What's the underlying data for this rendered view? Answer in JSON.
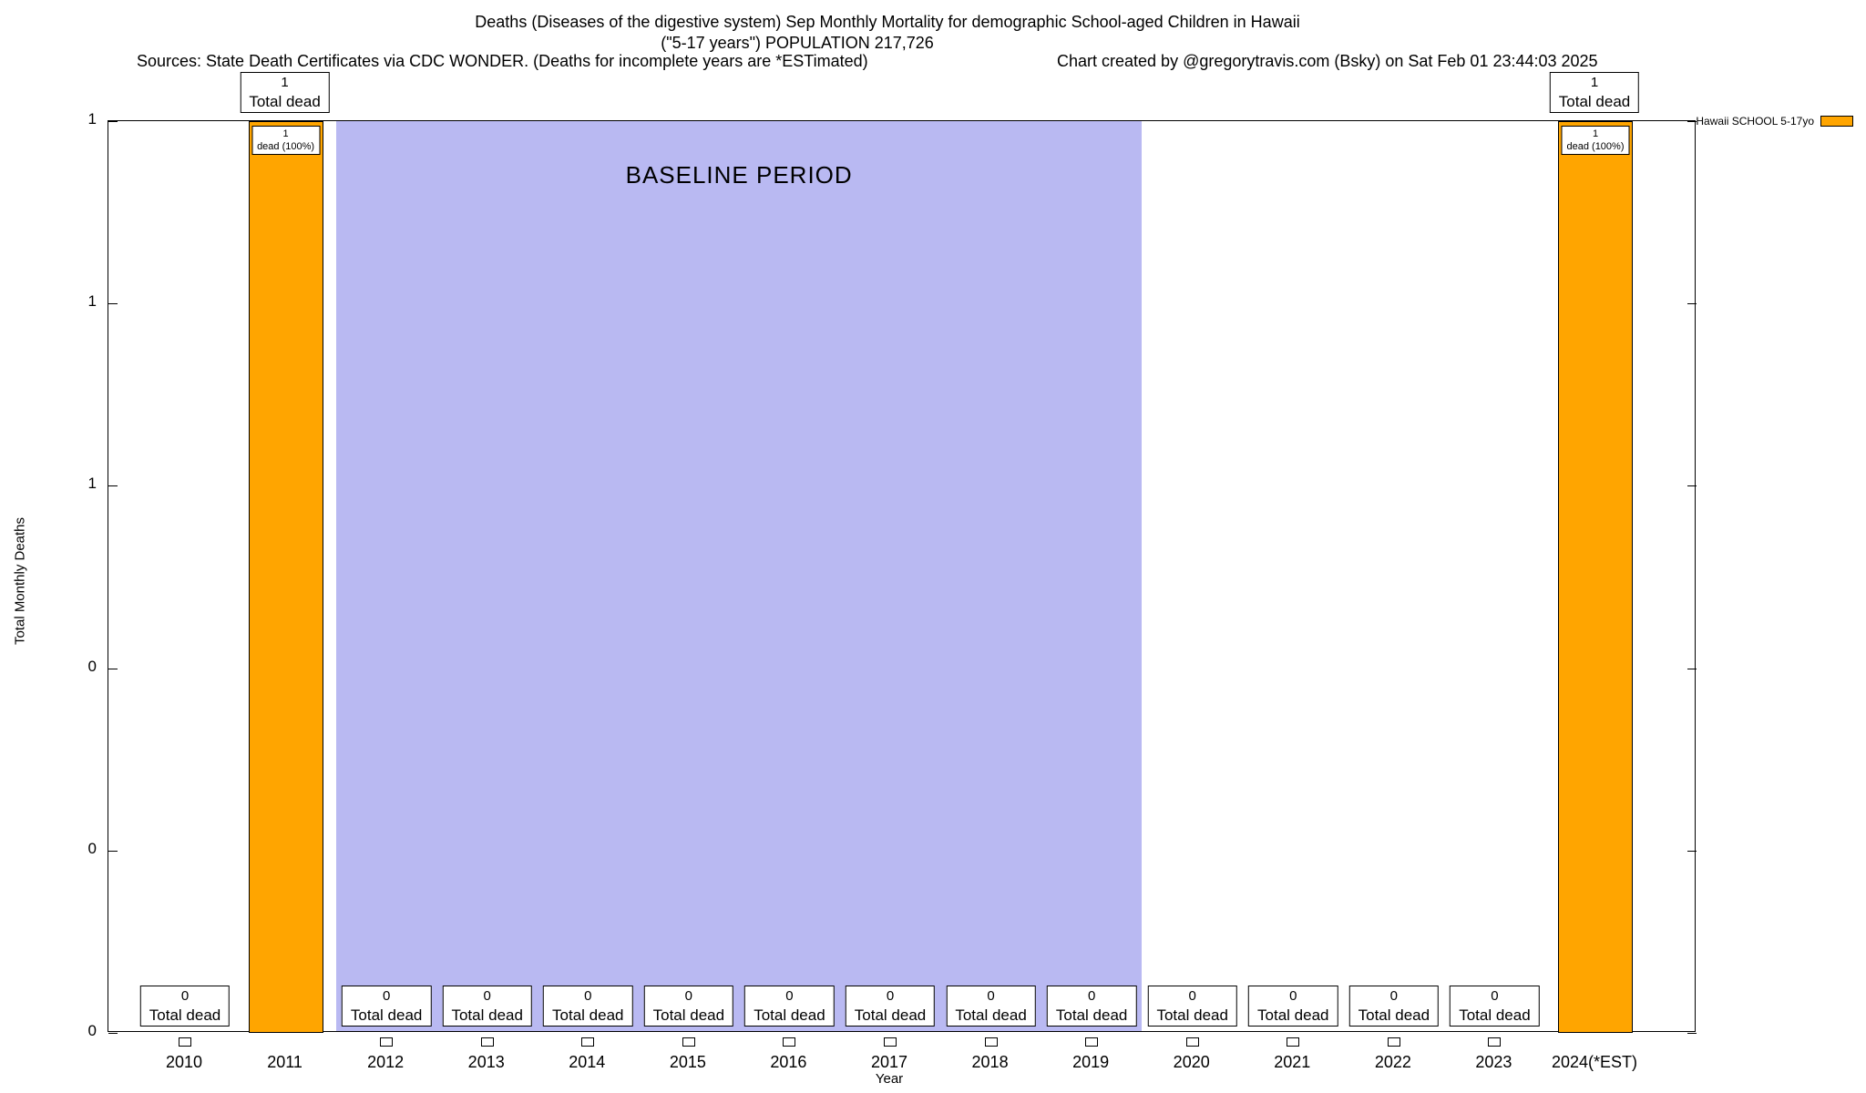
{
  "chart_data": {
    "type": "bar",
    "title_line1": "Deaths (Diseases of the digestive system) Sep Monthly Mortality for demographic School-aged Children in Hawaii",
    "title_line2": "(\"5-17 years\") POPULATION 217,726",
    "sources_note": "Sources: State Death Certificates via CDC WONDER. (Deaths for incomplete years are *ESTimated)",
    "credit_note": "Chart created by @gregorytravis.com (Bsky) on Sat Feb 01 23:44:03 2025",
    "xlabel": "Year",
    "ylabel": "Total Monthly Deaths",
    "ylim": [
      0,
      1
    ],
    "grid": false,
    "legend_position": "top-right",
    "series": [
      {
        "name": "Hawaii SCHOOL 5-17yo",
        "color": "#FFA500"
      }
    ],
    "categories": [
      "2010",
      "2011",
      "2012",
      "2013",
      "2014",
      "2015",
      "2016",
      "2017",
      "2018",
      "2019",
      "2020",
      "2021",
      "2022",
      "2023",
      "2024(*EST)"
    ],
    "values": [
      0,
      1,
      0,
      0,
      0,
      0,
      0,
      0,
      0,
      0,
      0,
      0,
      0,
      0,
      1
    ],
    "yticks": [
      {
        "value": 0.0,
        "label": "0"
      },
      {
        "value": 0.2,
        "label": "0"
      },
      {
        "value": 0.4,
        "label": "0"
      },
      {
        "value": 0.6,
        "label": "1"
      },
      {
        "value": 0.8,
        "label": "1"
      },
      {
        "value": 1.0,
        "label": "1"
      }
    ],
    "baseline": {
      "label": "BASELINE PERIOD",
      "from_category": "2012",
      "to_category": "2019",
      "from_index": 2,
      "to_index": 9,
      "color": "#b9b9f2"
    },
    "annotations": [
      {
        "category": "2010",
        "total": "0",
        "caption": "Total dead",
        "position": "bottom"
      },
      {
        "category": "2011",
        "total": "1",
        "caption": "Total dead",
        "position": "top",
        "sub_line1": "1",
        "sub_line2": "dead (100%)"
      },
      {
        "category": "2012",
        "total": "0",
        "caption": "Total dead",
        "position": "bottom"
      },
      {
        "category": "2013",
        "total": "0",
        "caption": "Total dead",
        "position": "bottom"
      },
      {
        "category": "2014",
        "total": "0",
        "caption": "Total dead",
        "position": "bottom"
      },
      {
        "category": "2015",
        "total": "0",
        "caption": "Total dead",
        "position": "bottom"
      },
      {
        "category": "2016",
        "total": "0",
        "caption": "Total dead",
        "position": "bottom"
      },
      {
        "category": "2017",
        "total": "0",
        "caption": "Total dead",
        "position": "bottom"
      },
      {
        "category": "2018",
        "total": "0",
        "caption": "Total dead",
        "position": "bottom"
      },
      {
        "category": "2019",
        "total": "0",
        "caption": "Total dead",
        "position": "bottom"
      },
      {
        "category": "2020",
        "total": "0",
        "caption": "Total dead",
        "position": "bottom"
      },
      {
        "category": "2021",
        "total": "0",
        "caption": "Total dead",
        "position": "bottom"
      },
      {
        "category": "2022",
        "total": "0",
        "caption": "Total dead",
        "position": "bottom"
      },
      {
        "category": "2023",
        "total": "0",
        "caption": "Total dead",
        "position": "bottom"
      },
      {
        "category": "2024(*EST)",
        "total": "1",
        "caption": "Total dead",
        "position": "top",
        "sub_line1": "1",
        "sub_line2": "dead (100%)"
      }
    ]
  }
}
